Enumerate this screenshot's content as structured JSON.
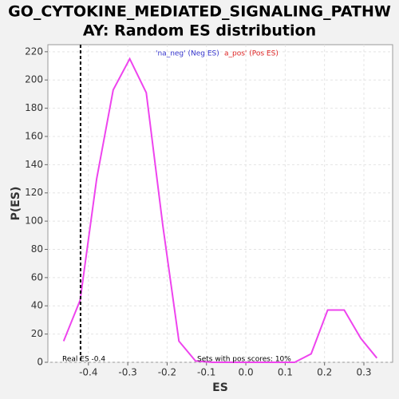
{
  "chart_data": {
    "type": "line",
    "title": [
      "GO_CYTOKINE_MEDIATED_SIGNALING_PATHW",
      "AY: Random ES distribution"
    ],
    "xlabel": "ES",
    "ylabel": "P(ES)",
    "x": [
      -0.463,
      -0.421,
      -0.379,
      -0.337,
      -0.295,
      -0.253,
      -0.211,
      -0.17,
      -0.128,
      -0.086,
      -0.044,
      -0.002,
      0.04,
      0.082,
      0.124,
      0.166,
      0.208,
      0.25,
      0.292,
      0.333
    ],
    "series": [
      {
        "name": "P(ES)",
        "color": "#ee44ee",
        "values": [
          15,
          44,
          130,
          193,
          215,
          191,
          97,
          15,
          1,
          0,
          0,
          0,
          0,
          0,
          0,
          6,
          37,
          37,
          17,
          3
        ]
      }
    ],
    "xlim": [
      -0.503,
      0.373
    ],
    "ylim": [
      0,
      225
    ],
    "xticks": [
      -0.4,
      -0.3,
      -0.2,
      -0.1,
      {
        "value": 0,
        "label": "0.0"
      },
      0.1,
      0.2,
      0.3
    ],
    "yticks": [
      0,
      20,
      40,
      60,
      80,
      100,
      120,
      140,
      160,
      180,
      200,
      220
    ],
    "grid": true,
    "real_es": {
      "value": -0.42,
      "label": "Real ES -0.4"
    },
    "annotation": "Sets with pos scores: 10%",
    "legend": [
      {
        "text": "'na_neg' (Neg ES)",
        "color": "#3333cc"
      },
      {
        "text": "a_pos' (Pos ES)",
        "color": "#dd2222"
      }
    ]
  }
}
